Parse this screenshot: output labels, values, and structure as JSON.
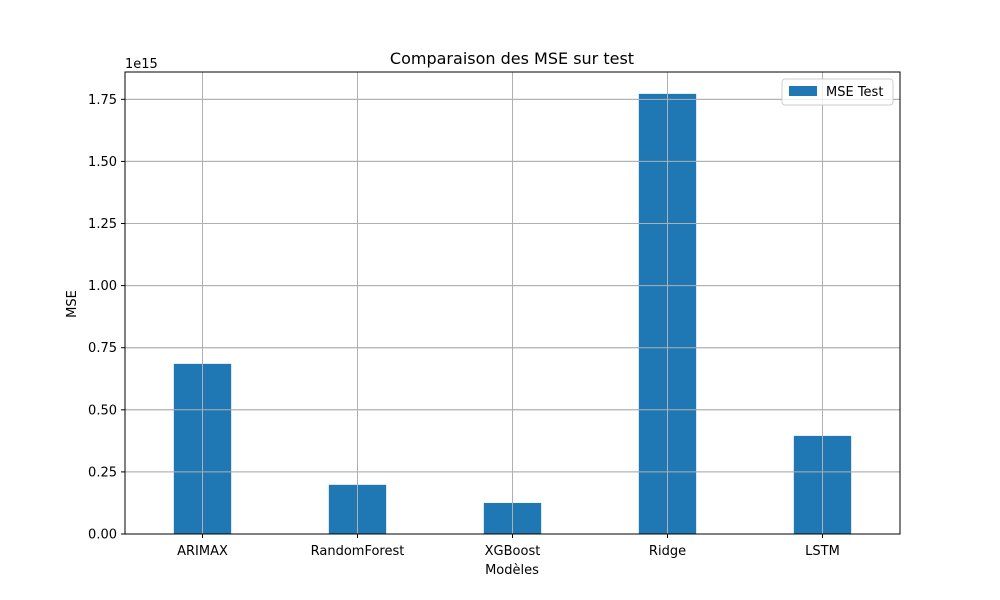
{
  "chart_data": {
    "type": "bar",
    "title": "Comparaison des MSE sur test",
    "xlabel": "Modèles",
    "ylabel": "MSE",
    "offset_text": "1e15",
    "categories": [
      "ARIMAX",
      "RandomForest",
      "XGBoost",
      "Ridge",
      "LSTM"
    ],
    "series": [
      {
        "name": "MSE Test",
        "values": [
          685000000000000.0,
          198000000000000.0,
          125000000000000.0,
          1772000000000000.0,
          395000000000000.0
        ],
        "color": "#1f77b4"
      }
    ],
    "ylim": [
      0,
      1860000000000000.0
    ],
    "y_ticks": [
      0,
      0.25,
      0.5,
      0.75,
      1.0,
      1.25,
      1.5,
      1.75
    ],
    "y_tick_labels": [
      "0.00",
      "0.25",
      "0.50",
      "0.75",
      "1.00",
      "1.25",
      "1.50",
      "1.75"
    ],
    "y_tick_scale": 1000000000000000.0,
    "grid": true,
    "legend": "top-right"
  }
}
